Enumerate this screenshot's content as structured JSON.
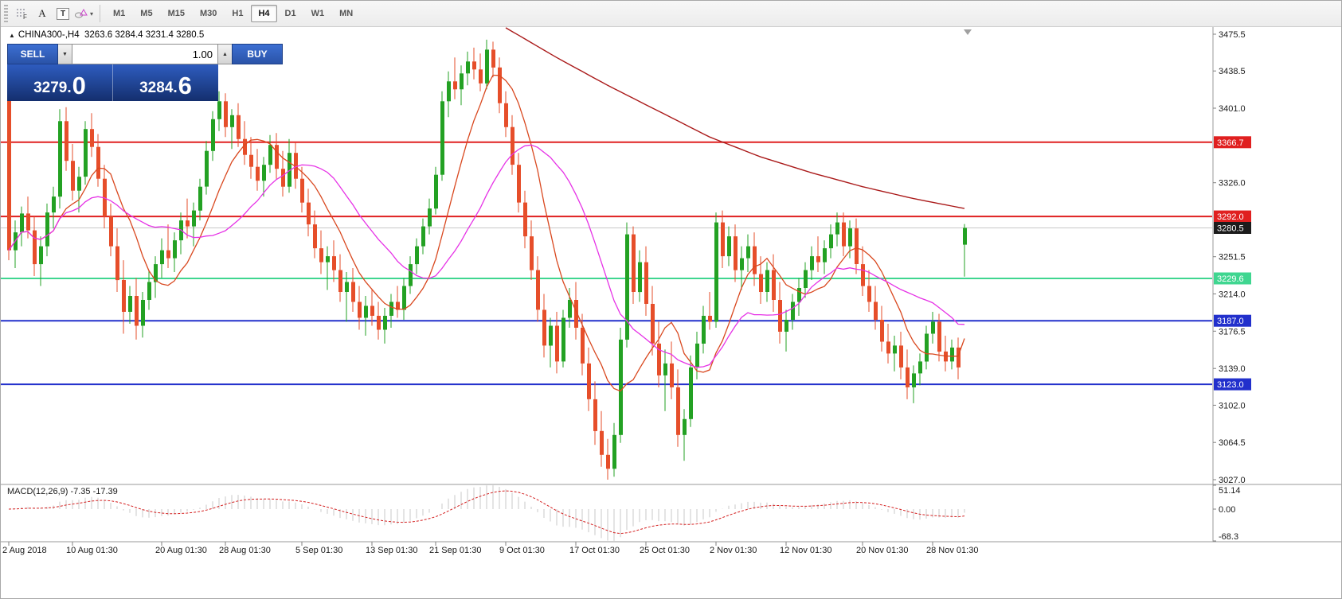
{
  "toolbar": {
    "tools": {
      "label_a": "A",
      "label_t": "T",
      "shapes_caret": "▾"
    },
    "timeframes": [
      "M1",
      "M5",
      "M15",
      "M30",
      "H1",
      "H4",
      "D1",
      "W1",
      "MN"
    ],
    "active_timeframe": "H4"
  },
  "symbol_info": {
    "marker": "▲",
    "text": "CHINA300-,H4  3263.6 3284.4 3231.4 3280.5"
  },
  "trade_panel": {
    "sell_label": "SELL",
    "buy_label": "BUY",
    "volume": "1.00",
    "down_arrow": "▼",
    "up_arrow": "▲",
    "sell_price_main": "3279.",
    "sell_price_big": "0",
    "buy_price_main": "3284.",
    "buy_price_big": "6"
  },
  "macd_panel": {
    "label": "MACD(12,26,9) -7.35 -17.39"
  },
  "chart_data": {
    "type": "candlestick",
    "symbol": "CHINA300-",
    "timeframe": "H4",
    "ohlc_header": {
      "open": 3263.6,
      "high": 3284.4,
      "low": 3231.4,
      "close": 3280.5
    },
    "price_range": [
      3027.0,
      3475.5
    ],
    "colors": {
      "up": "#23a123",
      "down": "#e64e2a",
      "ma_fast": "#d9481f",
      "ma_mid": "#e632e6",
      "ma_slow": "#aa1a1a",
      "line_red": "#e02020",
      "line_green": "#3fd690",
      "line_blue": "#2230cc",
      "current_price_line": "#c8c8c8",
      "macd_bar": "#c8c8c8",
      "macd_signal": "#d42020"
    },
    "y_ticks": [
      {
        "label": "3475.5",
        "price": 3475.5
      },
      {
        "label": "3438.5",
        "price": 3438.5
      },
      {
        "label": "3401.0",
        "price": 3401.0
      },
      {
        "label": "3326.0",
        "price": 3326.0
      },
      {
        "label": "3251.5",
        "price": 3251.5
      },
      {
        "label": "3214.0",
        "price": 3214.0
      },
      {
        "label": "3176.5",
        "price": 3176.5
      },
      {
        "label": "3139.0",
        "price": 3139.0
      },
      {
        "label": "3102.0",
        "price": 3102.0
      },
      {
        "label": "3064.5",
        "price": 3064.5
      },
      {
        "label": "3027.0",
        "price": 3027.0
      }
    ],
    "price_badges": [
      {
        "label": "3366.7",
        "price": 3366.7,
        "color": "#e02020"
      },
      {
        "label": "3292.0",
        "price": 3292.0,
        "color": "#e02020"
      },
      {
        "label": "3280.5",
        "price": 3280.5,
        "color": "#1c1c1c"
      },
      {
        "label": "3229.6",
        "price": 3229.6,
        "color": "#3fd690"
      },
      {
        "label": "3187.0",
        "price": 3187.0,
        "color": "#2230cc"
      },
      {
        "label": "3123.0",
        "price": 3123.0,
        "color": "#2230cc"
      }
    ],
    "h_lines": [
      {
        "price": 3366.7,
        "color": "#e02020",
        "width": 2
      },
      {
        "price": 3292.0,
        "color": "#e02020",
        "width": 2
      },
      {
        "price": 3280.5,
        "color": "#c8c8c8",
        "width": 1
      },
      {
        "price": 3229.6,
        "color": "#3fd690",
        "width": 2
      },
      {
        "price": 3187.0,
        "color": "#2230cc",
        "width": 2
      },
      {
        "price": 3123.0,
        "color": "#2230cc",
        "width": 2
      }
    ],
    "x_labels": [
      {
        "label": "2 Aug 2018",
        "index": 0
      },
      {
        "label": "10 Aug 01:30",
        "index": 10
      },
      {
        "label": "20 Aug 01:30",
        "index": 24
      },
      {
        "label": "28 Aug 01:30",
        "index": 34
      },
      {
        "label": "5 Sep 01:30",
        "index": 46
      },
      {
        "label": "13 Sep 01:30",
        "index": 57
      },
      {
        "label": "21 Sep 01:30",
        "index": 67
      },
      {
        "label": "9 Oct 01:30",
        "index": 78
      },
      {
        "label": "17 Oct 01:30",
        "index": 89
      },
      {
        "label": "25 Oct 01:30",
        "index": 100
      },
      {
        "label": "2 Nov 01:30",
        "index": 111
      },
      {
        "label": "12 Nov 01:30",
        "index": 122
      },
      {
        "label": "20 Nov 01:30",
        "index": 134
      },
      {
        "label": "28 Nov 01:30",
        "index": 145
      }
    ],
    "indicators": {
      "ma_fast_period": 9,
      "ma_mid_period": 20
    },
    "ma_slow_anchors": [
      [
        78,
        3482
      ],
      [
        86,
        3452
      ],
      [
        94,
        3424
      ],
      [
        102,
        3398
      ],
      [
        110,
        3372
      ],
      [
        118,
        3352
      ],
      [
        126,
        3336
      ],
      [
        134,
        3322
      ],
      [
        142,
        3310
      ],
      [
        150,
        3300
      ]
    ],
    "macd": {
      "fast": 12,
      "slow": 26,
      "signal_period": 9,
      "main_value": -7.35,
      "signal_value": -17.39,
      "range": [
        -68.3,
        51.14
      ],
      "axis_labels": [
        {
          "label": "51.14",
          "value": 51.14
        },
        {
          "label": "0.00",
          "value": 0
        },
        {
          "label": "-68.3",
          "value": -68.3
        }
      ]
    },
    "candles": [
      [
        3425,
        3436,
        3248,
        3258
      ],
      [
        3258,
        3288,
        3240,
        3276
      ],
      [
        3276,
        3302,
        3262,
        3295
      ],
      [
        3295,
        3312,
        3270,
        3278
      ],
      [
        3278,
        3292,
        3232,
        3244
      ],
      [
        3244,
        3272,
        3222,
        3262
      ],
      [
        3262,
        3305,
        3252,
        3296
      ],
      [
        3296,
        3322,
        3280,
        3312
      ],
      [
        3312,
        3400,
        3300,
        3388
      ],
      [
        3388,
        3402,
        3338,
        3348
      ],
      [
        3348,
        3365,
        3308,
        3318
      ],
      [
        3318,
        3342,
        3296,
        3332
      ],
      [
        3332,
        3388,
        3324,
        3380
      ],
      [
        3380,
        3396,
        3352,
        3362
      ],
      [
        3362,
        3375,
        3322,
        3330
      ],
      [
        3330,
        3344,
        3280,
        3292
      ],
      [
        3292,
        3305,
        3252,
        3262
      ],
      [
        3262,
        3280,
        3216,
        3228
      ],
      [
        3228,
        3248,
        3174,
        3196
      ],
      [
        3196,
        3222,
        3184,
        3212
      ],
      [
        3212,
        3230,
        3168,
        3182
      ],
      [
        3182,
        3216,
        3170,
        3208
      ],
      [
        3208,
        3238,
        3198,
        3226
      ],
      [
        3226,
        3252,
        3210,
        3244
      ],
      [
        3244,
        3270,
        3230,
        3258
      ],
      [
        3258,
        3284,
        3240,
        3250
      ],
      [
        3250,
        3276,
        3236,
        3268
      ],
      [
        3268,
        3296,
        3254,
        3288
      ],
      [
        3288,
        3310,
        3270,
        3282
      ],
      [
        3282,
        3306,
        3262,
        3298
      ],
      [
        3298,
        3330,
        3288,
        3322
      ],
      [
        3322,
        3368,
        3314,
        3358
      ],
      [
        3358,
        3398,
        3348,
        3390
      ],
      [
        3390,
        3418,
        3378,
        3408
      ],
      [
        3408,
        3416,
        3372,
        3382
      ],
      [
        3382,
        3400,
        3360,
        3394
      ],
      [
        3394,
        3406,
        3362,
        3370
      ],
      [
        3370,
        3388,
        3344,
        3354
      ],
      [
        3354,
        3372,
        3330,
        3342
      ],
      [
        3342,
        3360,
        3318,
        3328
      ],
      [
        3328,
        3352,
        3312,
        3344
      ],
      [
        3344,
        3374,
        3336,
        3364
      ],
      [
        3364,
        3376,
        3330,
        3340
      ],
      [
        3340,
        3358,
        3312,
        3322
      ],
      [
        3322,
        3370,
        3316,
        3356
      ],
      [
        3356,
        3366,
        3320,
        3330
      ],
      [
        3330,
        3342,
        3296,
        3306
      ],
      [
        3306,
        3320,
        3272,
        3284
      ],
      [
        3284,
        3298,
        3250,
        3260
      ],
      [
        3260,
        3278,
        3234,
        3246
      ],
      [
        3246,
        3262,
        3218,
        3252
      ],
      [
        3252,
        3268,
        3226,
        3238
      ],
      [
        3238,
        3254,
        3206,
        3216
      ],
      [
        3216,
        3236,
        3186,
        3226
      ],
      [
        3226,
        3240,
        3196,
        3206
      ],
      [
        3206,
        3222,
        3178,
        3190
      ],
      [
        3190,
        3212,
        3172,
        3202
      ],
      [
        3202,
        3218,
        3182,
        3192
      ],
      [
        3192,
        3206,
        3168,
        3178
      ],
      [
        3178,
        3200,
        3164,
        3192
      ],
      [
        3192,
        3214,
        3180,
        3206
      ],
      [
        3206,
        3222,
        3190,
        3198
      ],
      [
        3198,
        3230,
        3188,
        3222
      ],
      [
        3222,
        3252,
        3214,
        3244
      ],
      [
        3244,
        3270,
        3234,
        3262
      ],
      [
        3262,
        3290,
        3254,
        3282
      ],
      [
        3282,
        3310,
        3274,
        3300
      ],
      [
        3300,
        3342,
        3294,
        3334
      ],
      [
        3334,
        3418,
        3328,
        3408
      ],
      [
        3408,
        3438,
        3392,
        3428
      ],
      [
        3428,
        3452,
        3410,
        3420
      ],
      [
        3420,
        3444,
        3404,
        3436
      ],
      [
        3436,
        3458,
        3424,
        3448
      ],
      [
        3448,
        3462,
        3430,
        3440
      ],
      [
        3440,
        3456,
        3418,
        3426
      ],
      [
        3426,
        3470,
        3420,
        3460
      ],
      [
        3460,
        3468,
        3432,
        3442
      ],
      [
        3442,
        3452,
        3396,
        3406
      ],
      [
        3406,
        3418,
        3372,
        3382
      ],
      [
        3382,
        3394,
        3334,
        3344
      ],
      [
        3344,
        3356,
        3296,
        3306
      ],
      [
        3306,
        3318,
        3260,
        3272
      ],
      [
        3272,
        3288,
        3228,
        3238
      ],
      [
        3238,
        3252,
        3186,
        3198
      ],
      [
        3198,
        3214,
        3150,
        3162
      ],
      [
        3162,
        3190,
        3140,
        3182
      ],
      [
        3182,
        3196,
        3134,
        3146
      ],
      [
        3146,
        3198,
        3140,
        3190
      ],
      [
        3190,
        3220,
        3180,
        3208
      ],
      [
        3208,
        3226,
        3168,
        3180
      ],
      [
        3180,
        3194,
        3132,
        3144
      ],
      [
        3144,
        3160,
        3096,
        3108
      ],
      [
        3108,
        3126,
        3062,
        3076
      ],
      [
        3076,
        3096,
        3040,
        3052
      ],
      [
        3052,
        3068,
        3027,
        3038
      ],
      [
        3038,
        3084,
        3030,
        3072
      ],
      [
        3072,
        3180,
        3064,
        3168
      ],
      [
        3168,
        3286,
        3160,
        3274
      ],
      [
        3274,
        3282,
        3204,
        3216
      ],
      [
        3216,
        3258,
        3206,
        3246
      ],
      [
        3246,
        3262,
        3192,
        3204
      ],
      [
        3204,
        3222,
        3152,
        3164
      ],
      [
        3164,
        3186,
        3120,
        3132
      ],
      [
        3132,
        3158,
        3096,
        3144
      ],
      [
        3144,
        3166,
        3108,
        3120
      ],
      [
        3120,
        3138,
        3060,
        3072
      ],
      [
        3072,
        3098,
        3046,
        3088
      ],
      [
        3088,
        3152,
        3080,
        3140
      ],
      [
        3140,
        3176,
        3128,
        3164
      ],
      [
        3164,
        3202,
        3154,
        3192
      ],
      [
        3192,
        3216,
        3178,
        3186
      ],
      [
        3186,
        3296,
        3180,
        3286
      ],
      [
        3286,
        3298,
        3240,
        3252
      ],
      [
        3252,
        3282,
        3242,
        3272
      ],
      [
        3272,
        3284,
        3226,
        3238
      ],
      [
        3238,
        3262,
        3218,
        3250
      ],
      [
        3250,
        3274,
        3236,
        3262
      ],
      [
        3262,
        3276,
        3222,
        3234
      ],
      [
        3234,
        3252,
        3204,
        3216
      ],
      [
        3216,
        3246,
        3206,
        3238
      ],
      [
        3238,
        3254,
        3196,
        3208
      ],
      [
        3208,
        3226,
        3164,
        3176
      ],
      [
        3176,
        3198,
        3156,
        3188
      ],
      [
        3188,
        3214,
        3178,
        3206
      ],
      [
        3206,
        3230,
        3192,
        3220
      ],
      [
        3220,
        3246,
        3210,
        3238
      ],
      [
        3238,
        3262,
        3228,
        3252
      ],
      [
        3252,
        3272,
        3236,
        3246
      ],
      [
        3246,
        3268,
        3234,
        3260
      ],
      [
        3260,
        3284,
        3250,
        3274
      ],
      [
        3274,
        3296,
        3262,
        3286
      ],
      [
        3286,
        3296,
        3252,
        3262
      ],
      [
        3262,
        3288,
        3250,
        3280
      ],
      [
        3280,
        3290,
        3234,
        3244
      ],
      [
        3244,
        3262,
        3212,
        3222
      ],
      [
        3222,
        3238,
        3196,
        3206
      ],
      [
        3206,
        3222,
        3178,
        3188
      ],
      [
        3188,
        3202,
        3156,
        3166
      ],
      [
        3166,
        3184,
        3144,
        3154
      ],
      [
        3154,
        3172,
        3136,
        3162
      ],
      [
        3162,
        3176,
        3128,
        3140
      ],
      [
        3140,
        3158,
        3108,
        3120
      ],
      [
        3120,
        3142,
        3104,
        3134
      ],
      [
        3134,
        3154,
        3122,
        3146
      ],
      [
        3146,
        3182,
        3138,
        3174
      ],
      [
        3174,
        3196,
        3164,
        3186
      ],
      [
        3186,
        3194,
        3146,
        3156
      ],
      [
        3156,
        3172,
        3136,
        3146
      ],
      [
        3146,
        3168,
        3138,
        3160
      ],
      [
        3160,
        3170,
        3128,
        3140
      ],
      [
        3263.6,
        3284.4,
        3231.4,
        3280.5
      ]
    ]
  }
}
